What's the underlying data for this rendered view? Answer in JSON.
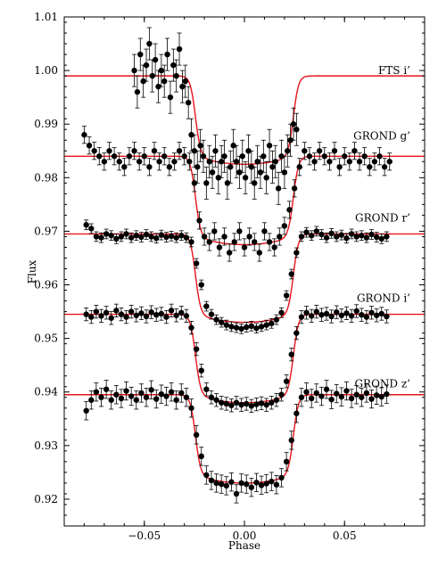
{
  "chart_data": {
    "type": "scatter",
    "title": "",
    "xlabel": "Phase",
    "ylabel": "Flux",
    "xlim": [
      -0.09,
      0.09
    ],
    "ylim": [
      0.915,
      1.01
    ],
    "xticks": [
      -0.05,
      0.0,
      0.05
    ],
    "xtick_labels": [
      "−0.05",
      "0.00",
      "0.05"
    ],
    "yticks": [
      0.92,
      0.93,
      0.94,
      0.95,
      0.96,
      0.97,
      0.98,
      0.99,
      1.0,
      1.01
    ],
    "ytick_labels": [
      "0.92",
      "0.93",
      "0.94",
      "0.95",
      "0.96",
      "0.97",
      "0.98",
      "0.99",
      "1.00",
      "1.01"
    ],
    "grid": false,
    "legend": "none",
    "series": [
      {
        "name": "FTS i'",
        "label": "FTS i’",
        "baseline": 0.999,
        "depth": 0.0165,
        "phase_range": [
          -0.057,
          0.028
        ],
        "error": 0.003,
        "x": [
          -0.055,
          -0.0535,
          -0.052,
          -0.0505,
          -0.049,
          -0.0475,
          -0.046,
          -0.0445,
          -0.043,
          -0.0415,
          -0.04,
          -0.0385,
          -0.037,
          -0.0355,
          -0.034,
          -0.0325,
          -0.031,
          -0.0295,
          -0.028,
          -0.0265,
          -0.025,
          -0.0235,
          -0.022,
          -0.0205,
          -0.019,
          -0.0175,
          -0.016,
          -0.0145,
          -0.013,
          -0.0115,
          -0.01,
          -0.0085,
          -0.007,
          -0.0055,
          -0.004,
          -0.0025,
          -0.001,
          0.0005,
          0.002,
          0.0035,
          0.005,
          0.0065,
          0.008,
          0.0095,
          0.011,
          0.0125,
          0.014,
          0.0155,
          0.017,
          0.0185,
          0.02,
          0.0215,
          0.023,
          0.0245,
          0.026
        ],
        "y": [
          1.0,
          0.996,
          1.003,
          0.998,
          1.001,
          1.005,
          0.999,
          1.002,
          0.997,
          1.0,
          0.998,
          1.003,
          0.995,
          1.001,
          0.999,
          1.004,
          0.997,
          0.998,
          0.994,
          0.988,
          0.985,
          0.982,
          0.986,
          0.984,
          0.979,
          0.983,
          0.981,
          0.985,
          0.98,
          0.983,
          0.984,
          0.979,
          0.982,
          0.986,
          0.983,
          0.981,
          0.984,
          0.98,
          0.985,
          0.982,
          0.979,
          0.983,
          0.981,
          0.984,
          0.98,
          0.986,
          0.982,
          0.983,
          0.978,
          0.984,
          0.981,
          0.985,
          0.987,
          0.99,
          0.989
        ]
      },
      {
        "name": "GROND g'",
        "label": "GROND g’",
        "baseline": 0.984,
        "depth": 0.0165,
        "phase_range": [
          -0.08,
          0.073
        ],
        "error": 0.0016,
        "x": [
          -0.08,
          -0.0775,
          -0.075,
          -0.0725,
          -0.07,
          -0.0675,
          -0.065,
          -0.0625,
          -0.06,
          -0.0575,
          -0.055,
          -0.0525,
          -0.05,
          -0.0475,
          -0.045,
          -0.0425,
          -0.04,
          -0.0375,
          -0.035,
          -0.0325,
          -0.03,
          -0.0275,
          -0.025,
          -0.0225,
          -0.02,
          -0.0175,
          -0.015,
          -0.0125,
          -0.01,
          -0.0075,
          -0.005,
          -0.0025,
          0.0,
          0.0025,
          0.005,
          0.0075,
          0.01,
          0.0125,
          0.015,
          0.0175,
          0.02,
          0.0225,
          0.025,
          0.0275,
          0.03,
          0.0325,
          0.035,
          0.0375,
          0.04,
          0.0425,
          0.045,
          0.0475,
          0.05,
          0.0525,
          0.055,
          0.0575,
          0.06,
          0.0625,
          0.065,
          0.0675,
          0.07,
          0.0725
        ],
        "y": [
          0.988,
          0.986,
          0.985,
          0.984,
          0.983,
          0.985,
          0.984,
          0.983,
          0.982,
          0.984,
          0.985,
          0.983,
          0.984,
          0.982,
          0.985,
          0.983,
          0.984,
          0.982,
          0.983,
          0.985,
          0.984,
          0.983,
          0.979,
          0.972,
          0.969,
          0.968,
          0.97,
          0.967,
          0.969,
          0.966,
          0.968,
          0.97,
          0.967,
          0.969,
          0.968,
          0.966,
          0.97,
          0.968,
          0.967,
          0.969,
          0.971,
          0.974,
          0.978,
          0.982,
          0.985,
          0.984,
          0.983,
          0.985,
          0.984,
          0.983,
          0.985,
          0.982,
          0.984,
          0.983,
          0.985,
          0.983,
          0.984,
          0.982,
          0.983,
          0.984,
          0.982,
          0.983
        ]
      },
      {
        "name": "GROND r'",
        "label": "GROND r’",
        "baseline": 0.9695,
        "depth": 0.0165,
        "phase_range": [
          -0.08,
          0.073
        ],
        "error": 0.0009,
        "x": [
          -0.079,
          -0.0765,
          -0.074,
          -0.0715,
          -0.069,
          -0.0665,
          -0.064,
          -0.0615,
          -0.059,
          -0.0565,
          -0.054,
          -0.0515,
          -0.049,
          -0.0465,
          -0.044,
          -0.0415,
          -0.039,
          -0.0365,
          -0.034,
          -0.0315,
          -0.029,
          -0.0265,
          -0.024,
          -0.0215,
          -0.019,
          -0.0165,
          -0.014,
          -0.0115,
          -0.009,
          -0.0065,
          -0.004,
          -0.0015,
          0.001,
          0.0035,
          0.006,
          0.0085,
          0.011,
          0.0135,
          0.016,
          0.0185,
          0.021,
          0.0235,
          0.026,
          0.0285,
          0.031,
          0.0335,
          0.036,
          0.0385,
          0.041,
          0.0435,
          0.046,
          0.0485,
          0.051,
          0.0535,
          0.056,
          0.0585,
          0.061,
          0.0635,
          0.066,
          0.0685,
          0.071
        ],
        "y": [
          0.9712,
          0.9705,
          0.969,
          0.9688,
          0.9695,
          0.9692,
          0.9686,
          0.969,
          0.9695,
          0.9688,
          0.9692,
          0.9689,
          0.9694,
          0.969,
          0.9687,
          0.9693,
          0.9689,
          0.9691,
          0.9688,
          0.9692,
          0.9688,
          0.968,
          0.964,
          0.96,
          0.956,
          0.9545,
          0.9535,
          0.953,
          0.9525,
          0.9522,
          0.952,
          0.9518,
          0.9521,
          0.9523,
          0.9519,
          0.9522,
          0.9525,
          0.9528,
          0.9535,
          0.9548,
          0.958,
          0.962,
          0.966,
          0.969,
          0.9698,
          0.9692,
          0.97,
          0.9694,
          0.9688,
          0.9696,
          0.969,
          0.9693,
          0.9687,
          0.9695,
          0.969,
          0.9692,
          0.9688,
          0.9694,
          0.9689,
          0.9686,
          0.969
        ]
      },
      {
        "name": "GROND i'",
        "label": "GROND i’",
        "baseline": 0.9545,
        "depth": 0.0165,
        "phase_range": [
          -0.08,
          0.073
        ],
        "error": 0.0012,
        "x": [
          -0.079,
          -0.0765,
          -0.074,
          -0.0715,
          -0.069,
          -0.0665,
          -0.064,
          -0.0615,
          -0.059,
          -0.0565,
          -0.054,
          -0.0515,
          -0.049,
          -0.0465,
          -0.044,
          -0.0415,
          -0.039,
          -0.0365,
          -0.034,
          -0.0315,
          -0.029,
          -0.0265,
          -0.024,
          -0.0215,
          -0.019,
          -0.0165,
          -0.014,
          -0.0115,
          -0.009,
          -0.0065,
          -0.004,
          -0.0015,
          0.001,
          0.0035,
          0.006,
          0.0085,
          0.011,
          0.0135,
          0.016,
          0.0185,
          0.021,
          0.0235,
          0.026,
          0.0285,
          0.031,
          0.0335,
          0.036,
          0.0385,
          0.041,
          0.0435,
          0.046,
          0.0485,
          0.051,
          0.0535,
          0.056,
          0.0585,
          0.061,
          0.0635,
          0.066,
          0.0685,
          0.071
        ],
        "y": [
          0.9545,
          0.954,
          0.955,
          0.9542,
          0.9548,
          0.9538,
          0.9552,
          0.9545,
          0.954,
          0.955,
          0.9543,
          0.9547,
          0.9541,
          0.9549,
          0.9544,
          0.9546,
          0.954,
          0.9552,
          0.9543,
          0.9548,
          0.9542,
          0.952,
          0.948,
          0.944,
          0.9405,
          0.939,
          0.9385,
          0.938,
          0.9378,
          0.9375,
          0.938,
          0.9376,
          0.9378,
          0.9374,
          0.9377,
          0.9379,
          0.9376,
          0.938,
          0.9385,
          0.9395,
          0.942,
          0.947,
          0.951,
          0.954,
          0.9548,
          0.9542,
          0.955,
          0.9544,
          0.9546,
          0.9541,
          0.9549,
          0.9543,
          0.9547,
          0.9542,
          0.9551,
          0.9544,
          0.954,
          0.9548,
          0.9543,
          0.9546,
          0.9541
        ]
      },
      {
        "name": "GROND z'",
        "label": "GROND z’",
        "baseline": 0.9395,
        "depth": 0.0165,
        "phase_range": [
          -0.08,
          0.073
        ],
        "error": 0.0017,
        "x": [
          -0.079,
          -0.0765,
          -0.074,
          -0.0715,
          -0.069,
          -0.0665,
          -0.064,
          -0.0615,
          -0.059,
          -0.0565,
          -0.054,
          -0.0515,
          -0.049,
          -0.0465,
          -0.044,
          -0.0415,
          -0.039,
          -0.0365,
          -0.034,
          -0.0315,
          -0.029,
          -0.0265,
          -0.024,
          -0.0215,
          -0.019,
          -0.0165,
          -0.014,
          -0.0115,
          -0.009,
          -0.0065,
          -0.004,
          -0.0015,
          0.001,
          0.0035,
          0.006,
          0.0085,
          0.011,
          0.0135,
          0.016,
          0.0185,
          0.021,
          0.0235,
          0.026,
          0.0285,
          0.031,
          0.0335,
          0.036,
          0.0385,
          0.041,
          0.0435,
          0.046,
          0.0485,
          0.051,
          0.0535,
          0.056,
          0.0585,
          0.061,
          0.0635,
          0.066,
          0.0685,
          0.071
        ],
        "y": [
          0.9365,
          0.9385,
          0.94,
          0.939,
          0.9405,
          0.9385,
          0.9395,
          0.9388,
          0.9402,
          0.9392,
          0.9385,
          0.9398,
          0.939,
          0.9404,
          0.9387,
          0.9396,
          0.9392,
          0.94,
          0.9385,
          0.9398,
          0.939,
          0.937,
          0.932,
          0.928,
          0.9245,
          0.9235,
          0.923,
          0.9228,
          0.9225,
          0.9232,
          0.921,
          0.923,
          0.9228,
          0.9222,
          0.9231,
          0.9226,
          0.9229,
          0.9233,
          0.9227,
          0.924,
          0.927,
          0.931,
          0.936,
          0.939,
          0.94,
          0.9388,
          0.9398,
          0.9392,
          0.9405,
          0.9386,
          0.9397,
          0.9391,
          0.9402,
          0.9388,
          0.9395,
          0.939,
          0.9398,
          0.9387,
          0.9394,
          0.9391,
          0.9396
        ]
      }
    ],
    "colors": {
      "points": "#000000",
      "model": "#e8141c",
      "frame": "#000000"
    }
  }
}
